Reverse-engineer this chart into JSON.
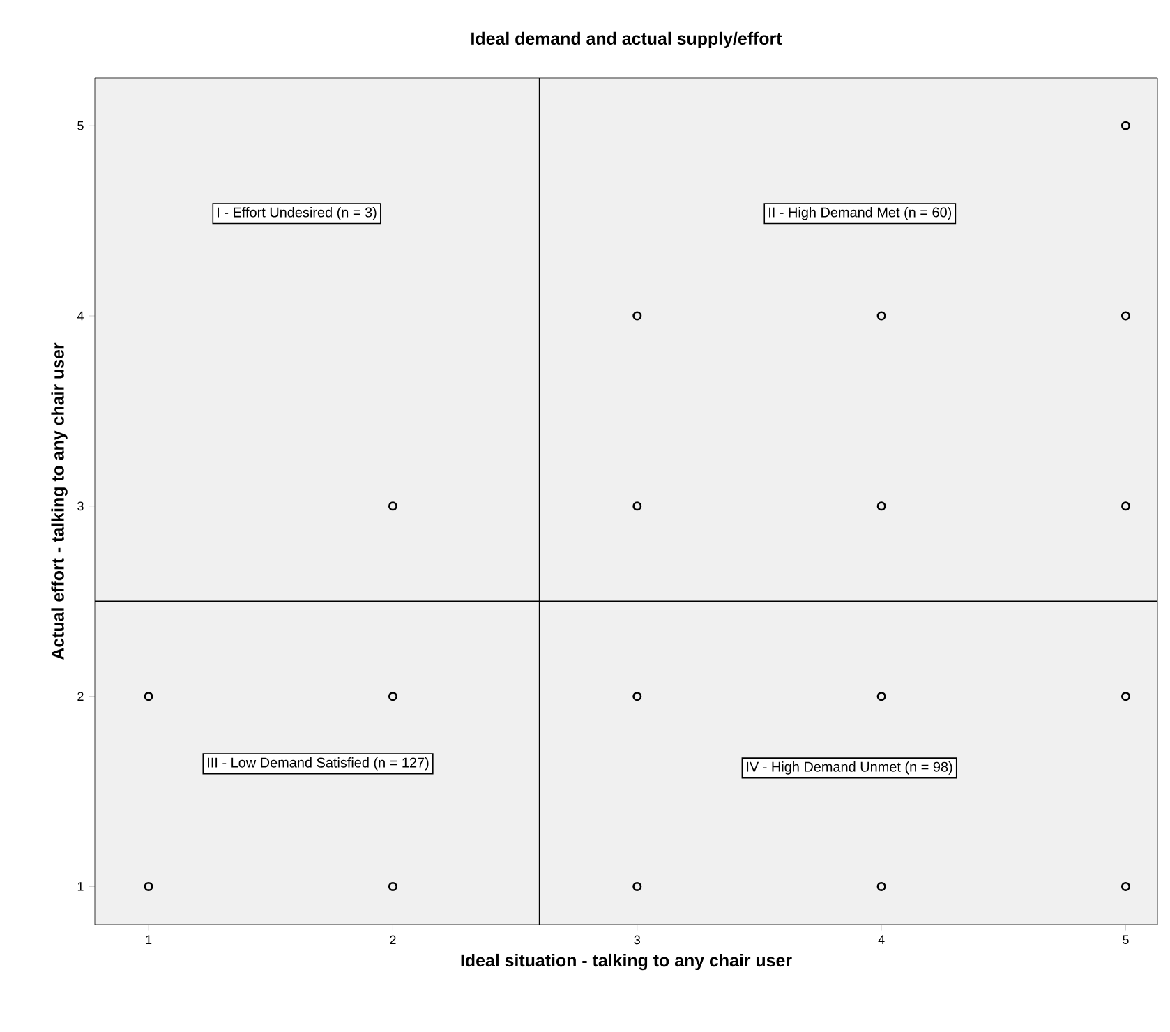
{
  "chart_data": {
    "type": "scatter",
    "title": "Ideal demand and actual supply/effort",
    "xlabel": "Ideal situation - talking to any chair user",
    "ylabel": "Actual effort - talking to any chair user",
    "x": [
      1,
      1,
      2,
      2,
      2,
      3,
      3,
      3,
      3,
      4,
      4,
      4,
      4,
      5,
      5,
      5,
      5,
      5
    ],
    "values": [
      1,
      2,
      1,
      2,
      3,
      1,
      2,
      3,
      4,
      1,
      2,
      3,
      4,
      1,
      2,
      3,
      4,
      5
    ],
    "color": "#000000",
    "marker": "circle",
    "xlim": [
      0.78,
      5.13
    ],
    "ylim": [
      0.8,
      5.25
    ],
    "xticks": [
      1,
      2,
      3,
      4,
      5
    ],
    "yticks": [
      1,
      2,
      3,
      4,
      5
    ],
    "grid": false,
    "ref_lines": [
      {
        "axis": "x",
        "value": 2.6,
        "color": "#000000"
      },
      {
        "axis": "y",
        "value": 2.5,
        "color": "#000000"
      }
    ],
    "annotations": [
      "I - Effort Undesired (n = 3)",
      "II - High Demand Met (n = 60)",
      "III - Low Demand Satisfied (n = 127)",
      "IV - High Demand Unmet (n = 98)"
    ]
  }
}
